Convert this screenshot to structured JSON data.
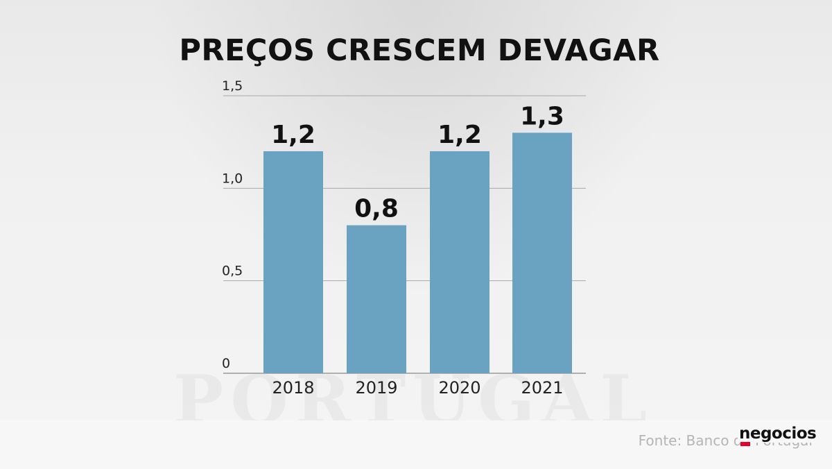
{
  "chart_data": {
    "type": "bar",
    "title": "PREÇOS CRESCEM DEVAGAR",
    "categories": [
      "2018",
      "2019",
      "2020",
      "2021"
    ],
    "values": [
      1.2,
      0.8,
      1.2,
      1.3
    ],
    "value_labels": [
      "1,2",
      "0,8",
      "1,2",
      "1,3"
    ],
    "yticks": [
      0,
      0.5,
      1.0,
      1.5
    ],
    "ytick_labels": [
      "0",
      "0,5",
      "1,0",
      "1,5"
    ],
    "ylim": [
      0,
      1.5
    ],
    "grid": true,
    "bar_color": "#6aa3c1"
  },
  "source": "Fonte: Banco de Portugal",
  "logo": "negocios",
  "colors": {
    "logo_accent": "#e4002b",
    "background": "#f2f2f2"
  }
}
